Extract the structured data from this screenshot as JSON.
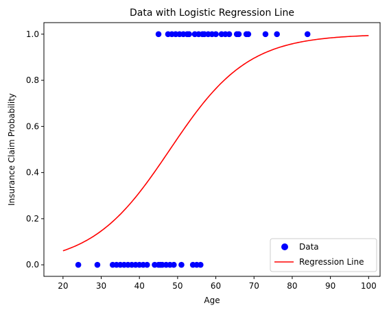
{
  "chart_data": {
    "type": "scatter",
    "title": "Data with Logistic Regression Line",
    "xlabel": "Age",
    "ylabel": "Insurance Claim Probability",
    "xlim": [
      15,
      103
    ],
    "ylim": [
      -0.05,
      1.05
    ],
    "xticks": [
      20,
      30,
      40,
      50,
      60,
      70,
      80,
      90,
      100
    ],
    "yticks": [
      0.0,
      0.2,
      0.4,
      0.6,
      0.8,
      1.0
    ],
    "ytick_labels": [
      "0.0",
      "0.2",
      "0.4",
      "0.6",
      "0.8",
      "1.0"
    ],
    "grid": false,
    "legend_position": "lower-right",
    "series": [
      {
        "name": "Data",
        "kind": "scatter",
        "color": "#0000ff",
        "x": [
          24,
          29,
          33,
          34,
          35,
          36,
          37,
          38,
          39,
          40,
          41,
          42,
          44,
          45,
          45.5,
          46,
          47,
          48,
          49,
          51,
          54,
          55,
          56,
          45,
          47.5,
          48.5,
          49.5,
          50.5,
          51.5,
          52.5,
          53,
          54.5,
          55.5,
          56.5,
          57,
          58,
          59,
          60,
          61.5,
          62.5,
          63.5,
          65.5,
          66,
          68,
          68.5,
          73,
          76,
          84
        ],
        "y": [
          0,
          0,
          0,
          0,
          0,
          0,
          0,
          0,
          0,
          0,
          0,
          0,
          0,
          0,
          0,
          0,
          0,
          0,
          0,
          0,
          0,
          0,
          0,
          1,
          1,
          1,
          1,
          1,
          1,
          1,
          1,
          1,
          1,
          1,
          1,
          1,
          1,
          1,
          1,
          1,
          1,
          1,
          1,
          1,
          1,
          1,
          1,
          1
        ]
      },
      {
        "name": "Regression Line",
        "kind": "line",
        "color": "#ff0000",
        "model": {
          "x0": 48,
          "k": 0.0978,
          "x_from": 20,
          "x_to": 100
        }
      }
    ]
  }
}
